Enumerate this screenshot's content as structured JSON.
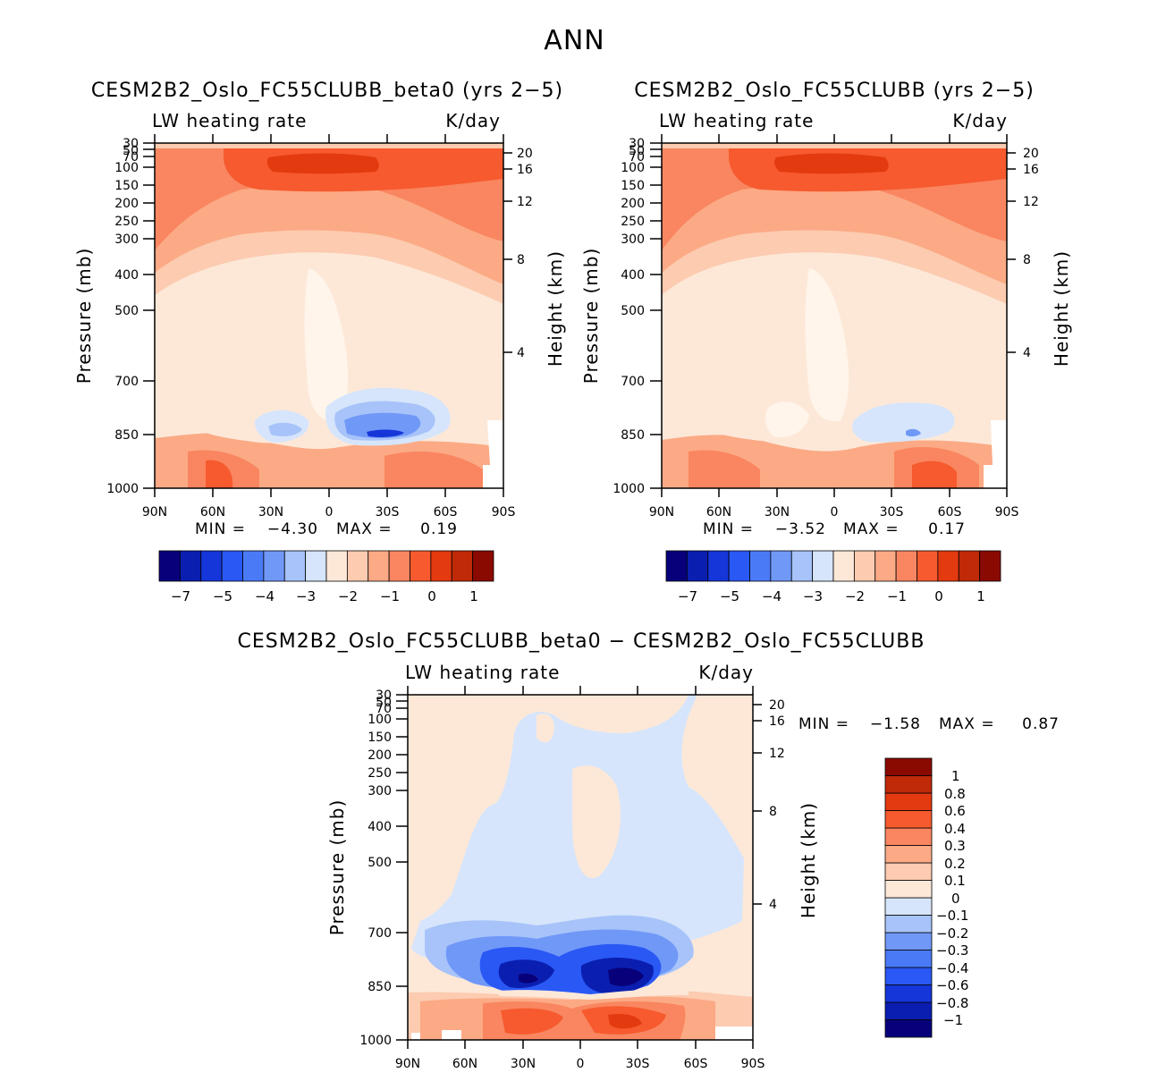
{
  "figure_title": "ANN",
  "panel_labels": {
    "variable": "LW heating rate",
    "units": "K/day",
    "ylabel": "Pressure (mb)",
    "ylabel_right": "Height (km)",
    "min_label": "MIN =",
    "max_label": "MAX ="
  },
  "colors": {
    "abs_scale": [
      "#08007a",
      "#0a1fb0",
      "#1536d9",
      "#2a58f5",
      "#4a7af5",
      "#7098f7",
      "#a7c3f9",
      "#d6e5fb",
      "#fde8d8",
      "#fccbb0",
      "#fbaa85",
      "#f98660",
      "#f65a2e",
      "#e43a10",
      "#c02a08",
      "#8a0a02"
    ],
    "diff_scale": [
      "#08007a",
      "#0a1fb0",
      "#1536d9",
      "#2a58f5",
      "#4a7af5",
      "#7098f7",
      "#a7c3f9",
      "#d6e5fb",
      "#fde8d8",
      "#fccbb0",
      "#fbaa85",
      "#f98660",
      "#f65a2e",
      "#e43a10",
      "#c02a08",
      "#8a0a02"
    ]
  },
  "chart_data": [
    {
      "type": "contour",
      "title": "CESM2B2_Oslo_FC55CLUBB_beta0 (yrs 2−5)",
      "min_value": "−4.30",
      "max_value": "0.19",
      "x_ticklabels": [
        "90N",
        "60N",
        "30N",
        "0",
        "30S",
        "60S",
        "90S"
      ],
      "y_ticklabels": [
        "30",
        "50",
        "70",
        "100",
        "150",
        "200",
        "250",
        "300",
        "400",
        "500",
        "700",
        "850",
        "1000"
      ],
      "right_ticklabels": [
        "20",
        "16",
        "12",
        "8",
        "4"
      ],
      "colorbar_ticklabels": [
        "−7",
        "−5",
        "−4",
        "−3",
        "−2",
        "−1",
        "0",
        "1"
      ]
    },
    {
      "type": "contour",
      "title": "CESM2B2_Oslo_FC55CLUBB (yrs 2−5)",
      "min_value": "−3.52",
      "max_value": "0.17",
      "x_ticklabels": [
        "90N",
        "60N",
        "30N",
        "0",
        "30S",
        "60S",
        "90S"
      ],
      "y_ticklabels": [
        "30",
        "50",
        "70",
        "100",
        "150",
        "200",
        "250",
        "300",
        "400",
        "500",
        "700",
        "850",
        "1000"
      ],
      "right_ticklabels": [
        "20",
        "16",
        "12",
        "8",
        "4"
      ],
      "colorbar_ticklabels": [
        "−7",
        "−5",
        "−4",
        "−3",
        "−2",
        "−1",
        "0",
        "1"
      ]
    },
    {
      "type": "contour",
      "title": "CESM2B2_Oslo_FC55CLUBB_beta0 − CESM2B2_Oslo_FC55CLUBB",
      "min_value": "−1.58",
      "max_value": "0.87",
      "x_ticklabels": [
        "90N",
        "60N",
        "30N",
        "0",
        "30S",
        "60S",
        "90S"
      ],
      "y_ticklabels": [
        "30",
        "50",
        "70",
        "100",
        "150",
        "200",
        "250",
        "300",
        "400",
        "500",
        "700",
        "850",
        "1000"
      ],
      "right_ticklabels": [
        "20",
        "16",
        "12",
        "8",
        "4"
      ],
      "colorbar_ticklabels": [
        "1",
        "0.8",
        "0.6",
        "0.4",
        "0.3",
        "0.2",
        "0.1",
        "0",
        "−0.1",
        "−0.2",
        "−0.3",
        "−0.4",
        "−0.6",
        "−0.8",
        "−1"
      ]
    }
  ]
}
